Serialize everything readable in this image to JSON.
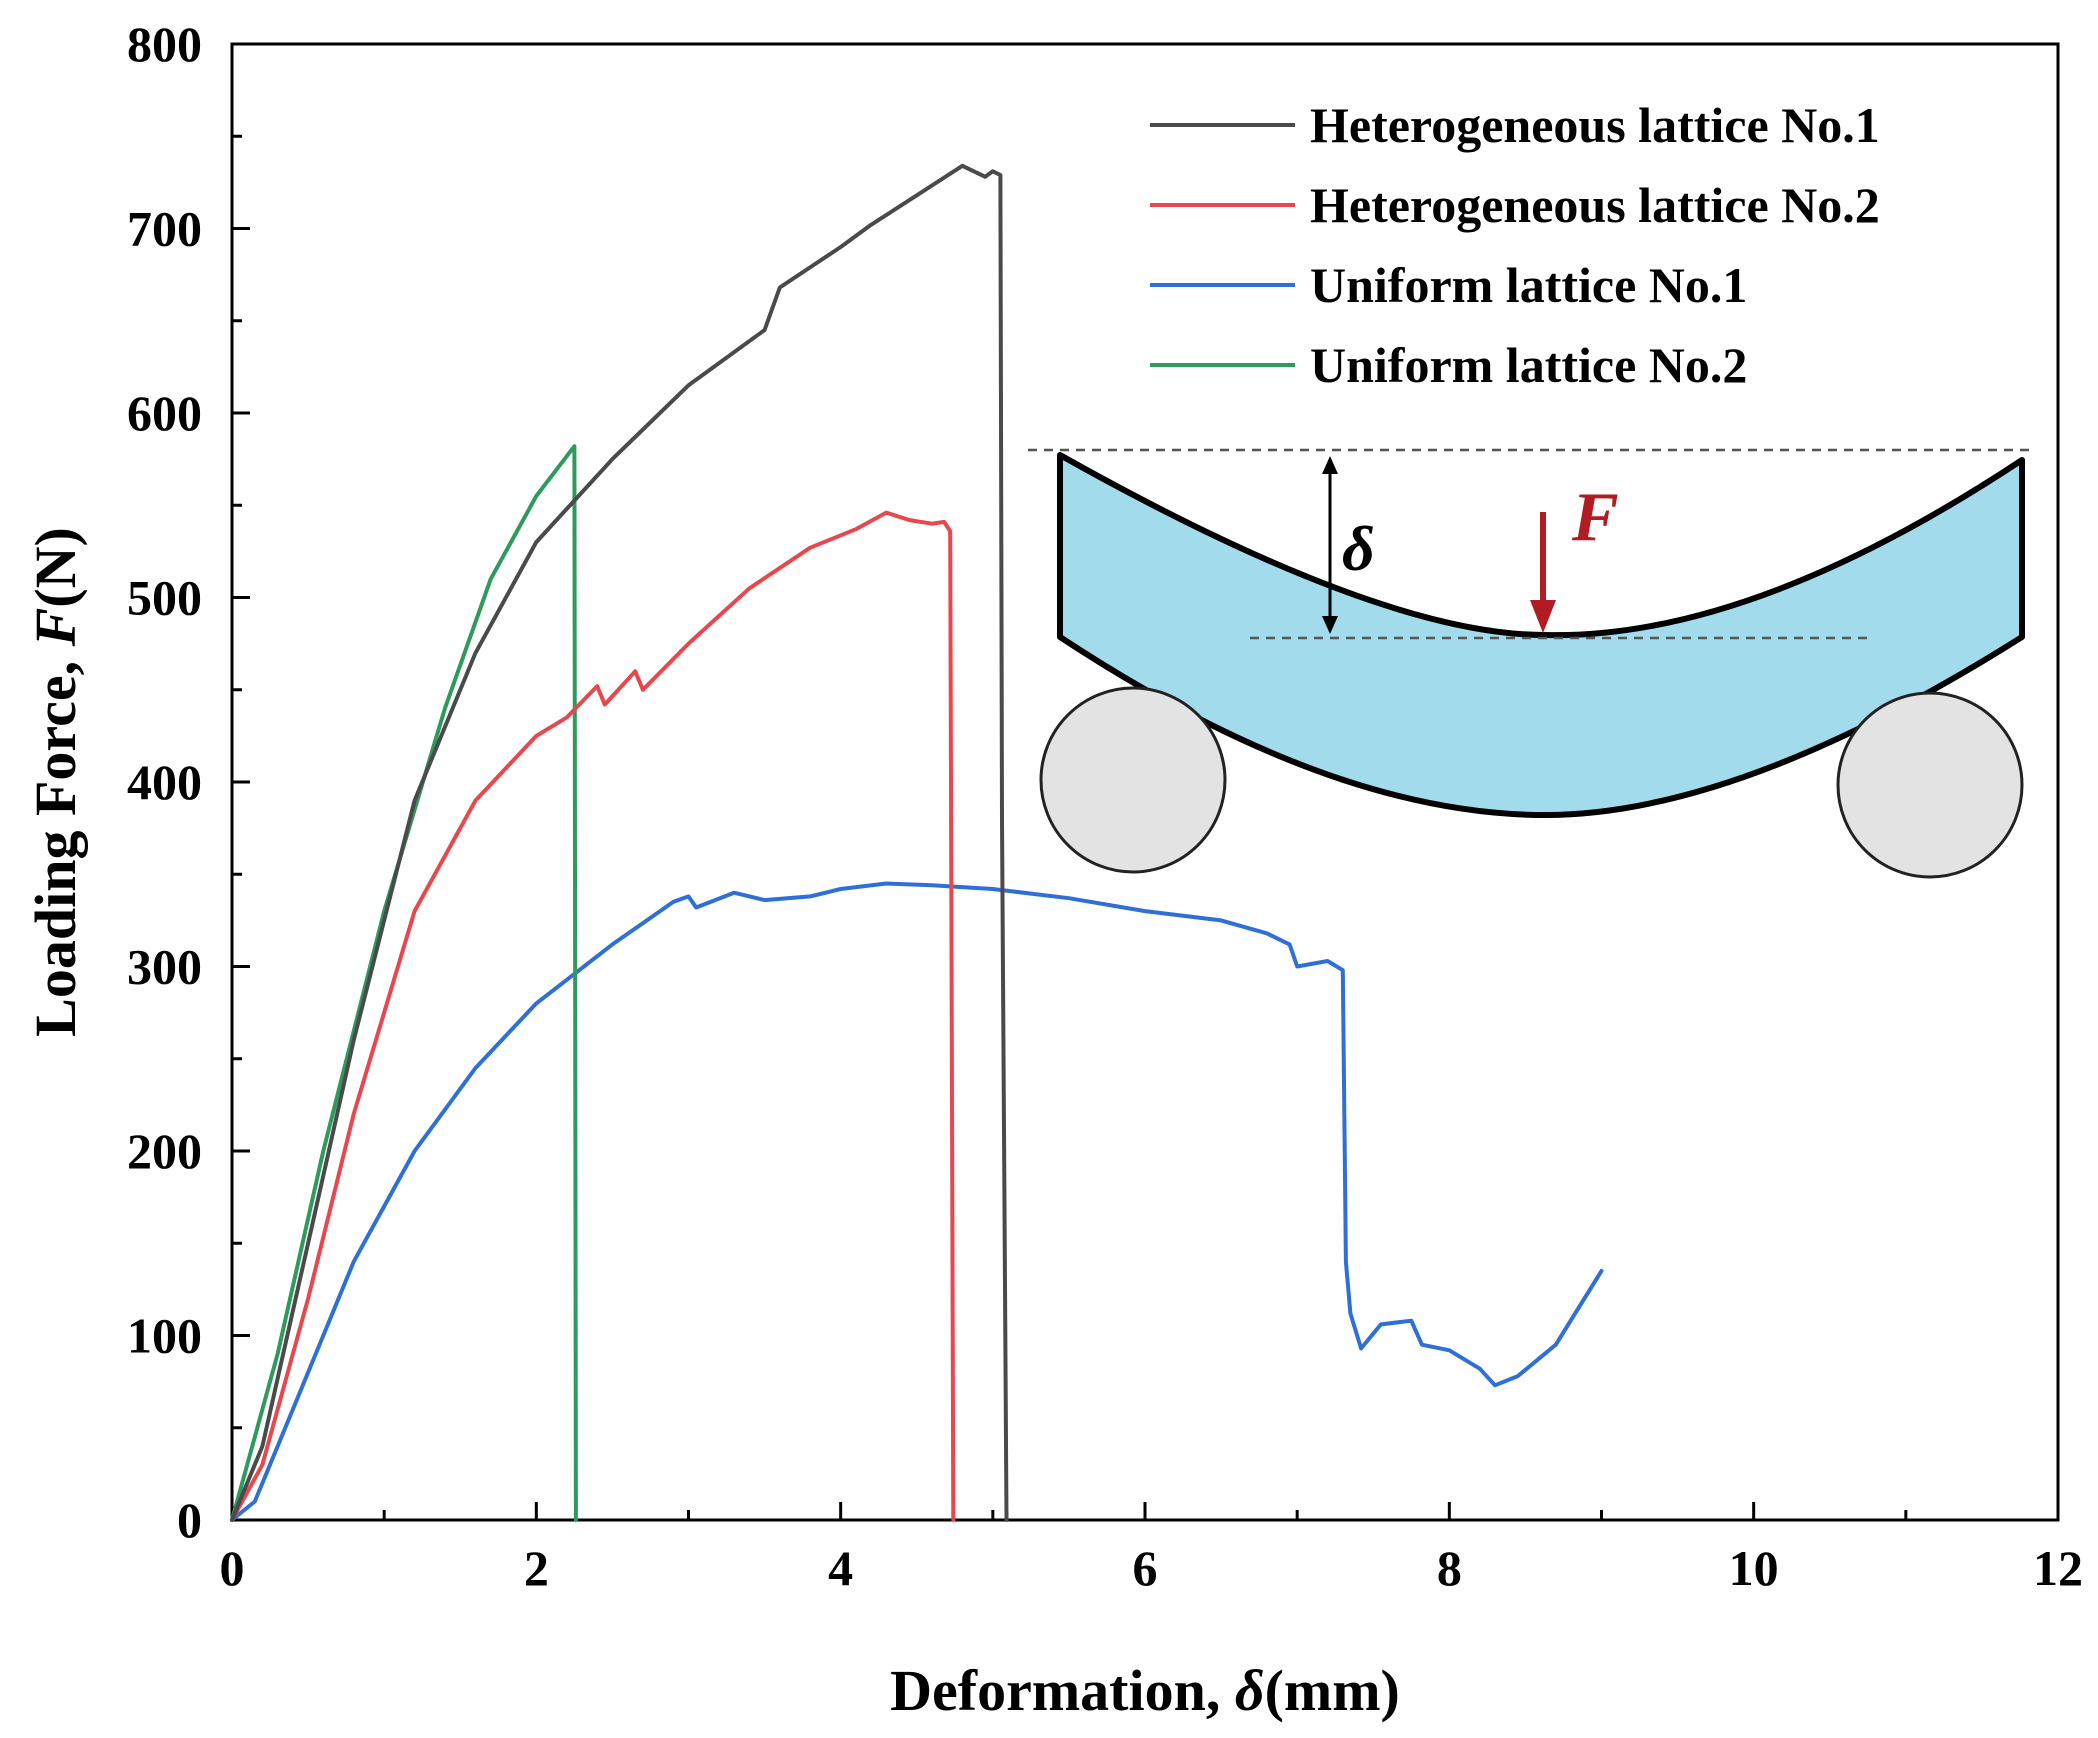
{
  "chart_data": {
    "type": "line",
    "xlabel_prefix": "Deformation, ",
    "xlabel_symbol": "δ",
    "xlabel_unit": "(mm)",
    "ylabel_prefix": "Loading Force, ",
    "ylabel_symbol": "F",
    "ylabel_unit": "(N)",
    "xlim": [
      0,
      12
    ],
    "ylim": [
      0,
      800
    ],
    "x_ticks": [
      0,
      2,
      4,
      6,
      8,
      10,
      12
    ],
    "y_ticks": [
      0,
      100,
      200,
      300,
      400,
      500,
      600,
      700,
      800
    ],
    "legend_position": "top-right",
    "series": [
      {
        "name": "Heterogeneous lattice No.1",
        "color": "#4a4a4a",
        "points": [
          [
            0,
            0
          ],
          [
            0.2,
            40
          ],
          [
            0.5,
            150
          ],
          [
            0.8,
            260
          ],
          [
            1.2,
            390
          ],
          [
            1.6,
            470
          ],
          [
            2.0,
            530
          ],
          [
            2.5,
            575
          ],
          [
            3.0,
            615
          ],
          [
            3.5,
            645
          ],
          [
            3.6,
            668
          ],
          [
            4.0,
            690
          ],
          [
            4.2,
            702
          ],
          [
            4.5,
            718
          ],
          [
            4.8,
            734
          ],
          [
            4.95,
            728
          ],
          [
            5.0,
            731
          ],
          [
            5.05,
            729
          ],
          [
            5.06,
            380
          ],
          [
            5.09,
            0
          ]
        ]
      },
      {
        "name": "Heterogeneous lattice No.2",
        "color": "#e8474d",
        "points": [
          [
            0,
            0
          ],
          [
            0.2,
            30
          ],
          [
            0.5,
            120
          ],
          [
            0.8,
            220
          ],
          [
            1.2,
            330
          ],
          [
            1.6,
            390
          ],
          [
            2.0,
            425
          ],
          [
            2.2,
            435
          ],
          [
            2.4,
            452
          ],
          [
            2.45,
            442
          ],
          [
            2.65,
            460
          ],
          [
            2.7,
            450
          ],
          [
            3.0,
            475
          ],
          [
            3.4,
            505
          ],
          [
            3.8,
            527
          ],
          [
            4.1,
            537
          ],
          [
            4.3,
            546
          ],
          [
            4.45,
            542
          ],
          [
            4.6,
            540
          ],
          [
            4.68,
            541
          ],
          [
            4.72,
            536
          ],
          [
            4.74,
            0
          ]
        ]
      },
      {
        "name": "Uniform lattice No.1",
        "color": "#2f6fd8",
        "points": [
          [
            0,
            0
          ],
          [
            0.15,
            10
          ],
          [
            0.4,
            60
          ],
          [
            0.8,
            140
          ],
          [
            1.2,
            200
          ],
          [
            1.6,
            245
          ],
          [
            2.0,
            280
          ],
          [
            2.5,
            312
          ],
          [
            2.9,
            335
          ],
          [
            3.0,
            338
          ],
          [
            3.05,
            332
          ],
          [
            3.3,
            340
          ],
          [
            3.5,
            336
          ],
          [
            3.8,
            338
          ],
          [
            4.0,
            342
          ],
          [
            4.3,
            345
          ],
          [
            4.6,
            344
          ],
          [
            5.0,
            342
          ],
          [
            5.5,
            337
          ],
          [
            6.0,
            330
          ],
          [
            6.5,
            325
          ],
          [
            6.8,
            318
          ],
          [
            6.95,
            312
          ],
          [
            7.0,
            300
          ],
          [
            7.2,
            303
          ],
          [
            7.3,
            298
          ],
          [
            7.32,
            140
          ],
          [
            7.35,
            112
          ],
          [
            7.42,
            93
          ],
          [
            7.55,
            106
          ],
          [
            7.75,
            108
          ],
          [
            7.82,
            95
          ],
          [
            8.0,
            92
          ],
          [
            8.2,
            82
          ],
          [
            8.3,
            73
          ],
          [
            8.45,
            78
          ],
          [
            8.7,
            95
          ],
          [
            9.0,
            135
          ]
        ]
      },
      {
        "name": "Uniform lattice No.2",
        "color": "#2e9a5c",
        "points": [
          [
            0,
            0
          ],
          [
            0.3,
            90
          ],
          [
            0.6,
            200
          ],
          [
            1.0,
            330
          ],
          [
            1.4,
            440
          ],
          [
            1.7,
            510
          ],
          [
            2.0,
            555
          ],
          [
            2.25,
            582
          ],
          [
            2.26,
            0
          ]
        ]
      }
    ],
    "inset": {
      "delta_label": "δ",
      "force_label": "F"
    }
  }
}
